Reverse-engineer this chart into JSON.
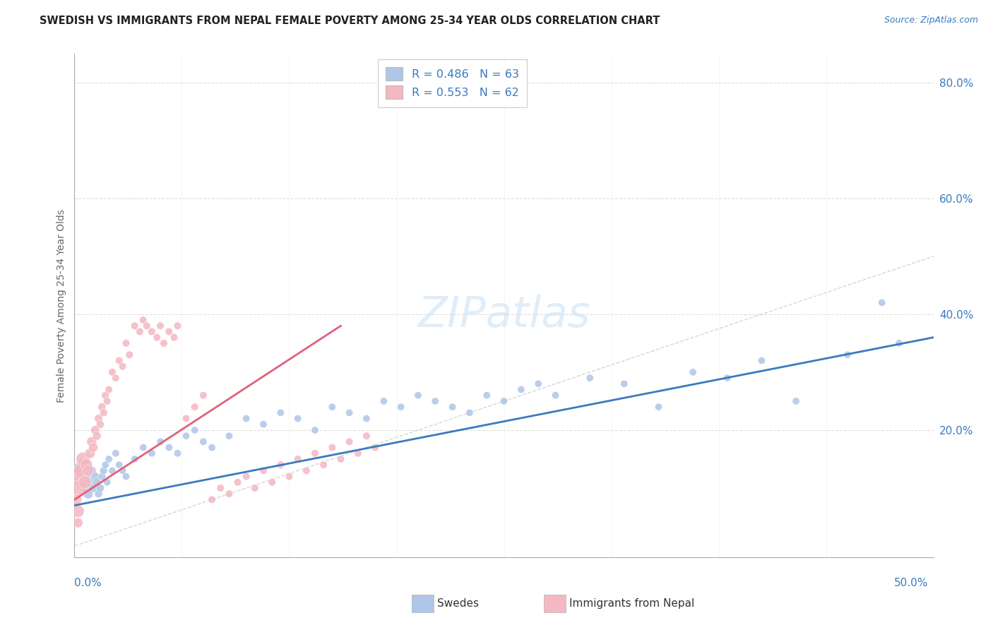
{
  "title": "SWEDISH VS IMMIGRANTS FROM NEPAL FEMALE POVERTY AMONG 25-34 YEAR OLDS CORRELATION CHART",
  "source": "Source: ZipAtlas.com",
  "ylabel": "Female Poverty Among 25-34 Year Olds",
  "legend_color1": "#aec6e8",
  "legend_color2": "#f4b8c1",
  "swedes_color": "#aec6e8",
  "nepal_color": "#f4b8c1",
  "trend_swedes_color": "#3a7abf",
  "trend_nepal_color": "#e0607a",
  "diagonal_color": "#cccccc",
  "background_color": "#ffffff",
  "xlim": [
    0.0,
    0.5
  ],
  "ylim": [
    -0.02,
    0.85
  ],
  "swedes_x": [
    0.002,
    0.004,
    0.005,
    0.006,
    0.007,
    0.008,
    0.009,
    0.01,
    0.011,
    0.012,
    0.013,
    0.014,
    0.015,
    0.016,
    0.017,
    0.018,
    0.019,
    0.02,
    0.022,
    0.024,
    0.026,
    0.028,
    0.03,
    0.035,
    0.04,
    0.045,
    0.05,
    0.055,
    0.06,
    0.065,
    0.07,
    0.075,
    0.08,
    0.09,
    0.1,
    0.11,
    0.12,
    0.13,
    0.14,
    0.15,
    0.16,
    0.17,
    0.18,
    0.19,
    0.2,
    0.21,
    0.22,
    0.23,
    0.24,
    0.25,
    0.26,
    0.27,
    0.28,
    0.3,
    0.32,
    0.34,
    0.36,
    0.38,
    0.4,
    0.42,
    0.45,
    0.47,
    0.48
  ],
  "swedes_y": [
    0.13,
    0.11,
    0.14,
    0.12,
    0.1,
    0.09,
    0.11,
    0.13,
    0.1,
    0.12,
    0.11,
    0.09,
    0.1,
    0.12,
    0.13,
    0.14,
    0.11,
    0.15,
    0.13,
    0.16,
    0.14,
    0.13,
    0.12,
    0.15,
    0.17,
    0.16,
    0.18,
    0.17,
    0.16,
    0.19,
    0.2,
    0.18,
    0.17,
    0.19,
    0.22,
    0.21,
    0.23,
    0.22,
    0.2,
    0.24,
    0.23,
    0.22,
    0.25,
    0.24,
    0.26,
    0.25,
    0.24,
    0.23,
    0.26,
    0.25,
    0.27,
    0.28,
    0.26,
    0.29,
    0.28,
    0.24,
    0.3,
    0.29,
    0.32,
    0.25,
    0.33,
    0.42,
    0.35
  ],
  "swedes_size": [
    250,
    180,
    160,
    140,
    120,
    100,
    90,
    80,
    80,
    75,
    70,
    65,
    65,
    60,
    60,
    55,
    55,
    55,
    55,
    55,
    55,
    55,
    55,
    55,
    55,
    55,
    55,
    55,
    55,
    55,
    55,
    55,
    55,
    55,
    55,
    55,
    55,
    55,
    55,
    55,
    55,
    55,
    55,
    55,
    55,
    55,
    55,
    55,
    55,
    55,
    55,
    55,
    55,
    55,
    55,
    55,
    55,
    55,
    55,
    55,
    55,
    55,
    55
  ],
  "nepal_x": [
    0.001,
    0.003,
    0.004,
    0.005,
    0.006,
    0.007,
    0.008,
    0.009,
    0.01,
    0.011,
    0.012,
    0.013,
    0.014,
    0.015,
    0.016,
    0.017,
    0.018,
    0.019,
    0.02,
    0.022,
    0.024,
    0.026,
    0.028,
    0.03,
    0.032,
    0.035,
    0.038,
    0.04,
    0.042,
    0.045,
    0.048,
    0.05,
    0.052,
    0.055,
    0.058,
    0.06,
    0.065,
    0.07,
    0.075,
    0.08,
    0.085,
    0.09,
    0.095,
    0.1,
    0.105,
    0.11,
    0.115,
    0.12,
    0.125,
    0.13,
    0.135,
    0.14,
    0.145,
    0.15,
    0.155,
    0.16,
    0.165,
    0.17,
    0.175,
    0.001,
    0.002,
    0.002
  ],
  "nepal_y": [
    0.12,
    0.1,
    0.13,
    0.15,
    0.11,
    0.14,
    0.13,
    0.16,
    0.18,
    0.17,
    0.2,
    0.19,
    0.22,
    0.21,
    0.24,
    0.23,
    0.26,
    0.25,
    0.27,
    0.3,
    0.29,
    0.32,
    0.31,
    0.35,
    0.33,
    0.38,
    0.37,
    0.39,
    0.38,
    0.37,
    0.36,
    0.38,
    0.35,
    0.37,
    0.36,
    0.38,
    0.22,
    0.24,
    0.26,
    0.08,
    0.1,
    0.09,
    0.11,
    0.12,
    0.1,
    0.13,
    0.11,
    0.14,
    0.12,
    0.15,
    0.13,
    0.16,
    0.14,
    0.17,
    0.15,
    0.18,
    0.16,
    0.19,
    0.17,
    0.08,
    0.06,
    0.04
  ],
  "nepal_size": [
    350,
    280,
    240,
    200,
    170,
    150,
    130,
    110,
    100,
    90,
    80,
    75,
    70,
    65,
    65,
    60,
    60,
    58,
    58,
    58,
    58,
    58,
    58,
    58,
    58,
    58,
    58,
    58,
    58,
    58,
    58,
    58,
    58,
    58,
    58,
    58,
    58,
    58,
    58,
    58,
    58,
    58,
    58,
    58,
    58,
    58,
    58,
    58,
    58,
    58,
    58,
    58,
    58,
    58,
    58,
    58,
    58,
    58,
    58,
    120,
    160,
    100
  ],
  "swedes_trend_x0": 0.0,
  "swedes_trend_x1": 0.5,
  "swedes_trend_y0": 0.07,
  "swedes_trend_y1": 0.36,
  "nepal_trend_x0": 0.0,
  "nepal_trend_x1": 0.155,
  "nepal_trend_y0": 0.08,
  "nepal_trend_y1": 0.38
}
